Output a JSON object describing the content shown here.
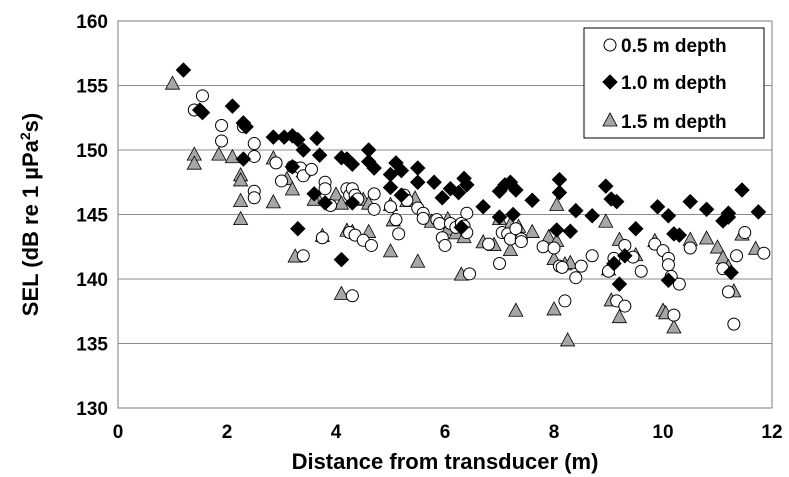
{
  "chart_data": {
    "type": "scatter",
    "title": "",
    "xlabel": "Distance from transducer (m)",
    "ylabel": "SEL (dB re 1 µPa²s)",
    "ylabel_parts": [
      "SEL (dB re 1 µPa",
      "2",
      "s)"
    ],
    "xlim": [
      0,
      12
    ],
    "ylim": [
      130,
      160
    ],
    "xticks": [
      0,
      2,
      4,
      6,
      8,
      10,
      12
    ],
    "yticks": [
      130,
      135,
      140,
      145,
      150,
      155,
      160
    ],
    "grid": "horizontal",
    "legend_position": "top-right",
    "series": [
      {
        "name": "0.5 m depth",
        "marker": "circle",
        "fill": "#ffffff",
        "stroke": "#000000",
        "points": [
          [
            1.55,
            154.2
          ],
          [
            1.4,
            153.1
          ],
          [
            1.9,
            151.9
          ],
          [
            1.9,
            150.7
          ],
          [
            2.3,
            151.8
          ],
          [
            2.5,
            150.5
          ],
          [
            2.5,
            149.5
          ],
          [
            2.5,
            146.8
          ],
          [
            2.5,
            146.3
          ],
          [
            2.9,
            149.0
          ],
          [
            3.0,
            147.6
          ],
          [
            3.2,
            148.7
          ],
          [
            3.35,
            148.6
          ],
          [
            3.4,
            148.0
          ],
          [
            3.55,
            148.5
          ],
          [
            3.8,
            147.5
          ],
          [
            3.8,
            147.0
          ],
          [
            3.4,
            141.8
          ],
          [
            3.75,
            143.2
          ],
          [
            3.9,
            145.7
          ],
          [
            4.2,
            147.0
          ],
          [
            4.25,
            146.5
          ],
          [
            4.3,
            147.0
          ],
          [
            4.35,
            146.5
          ],
          [
            4.4,
            146.2
          ],
          [
            4.25,
            143.6
          ],
          [
            4.35,
            143.4
          ],
          [
            4.5,
            143.0
          ],
          [
            4.3,
            138.7
          ],
          [
            4.7,
            146.6
          ],
          [
            4.7,
            145.4
          ],
          [
            4.65,
            142.6
          ],
          [
            5.0,
            145.6
          ],
          [
            5.1,
            144.6
          ],
          [
            5.15,
            143.5
          ],
          [
            5.25,
            146.5
          ],
          [
            5.3,
            146.1
          ],
          [
            5.5,
            145.5
          ],
          [
            5.6,
            145.1
          ],
          [
            5.6,
            144.7
          ],
          [
            5.85,
            144.6
          ],
          [
            5.9,
            144.3
          ],
          [
            5.95,
            143.2
          ],
          [
            6.0,
            142.6
          ],
          [
            6.1,
            144.3
          ],
          [
            6.2,
            144.0
          ],
          [
            6.3,
            144.3
          ],
          [
            6.35,
            144.1
          ],
          [
            6.4,
            145.1
          ],
          [
            6.4,
            143.6
          ],
          [
            6.45,
            140.4
          ],
          [
            6.8,
            142.7
          ],
          [
            7.0,
            141.2
          ],
          [
            7.05,
            143.6
          ],
          [
            7.15,
            143.5
          ],
          [
            7.2,
            143.1
          ],
          [
            7.3,
            143.9
          ],
          [
            7.4,
            143.1
          ],
          [
            7.4,
            142.9
          ],
          [
            7.8,
            142.5
          ],
          [
            8.0,
            142.4
          ],
          [
            8.1,
            141.0
          ],
          [
            8.15,
            140.9
          ],
          [
            8.2,
            138.3
          ],
          [
            8.4,
            140.1
          ],
          [
            8.5,
            141.0
          ],
          [
            8.7,
            141.8
          ],
          [
            9.0,
            140.6
          ],
          [
            9.1,
            141.6
          ],
          [
            9.15,
            138.3
          ],
          [
            9.3,
            137.9
          ],
          [
            9.3,
            142.6
          ],
          [
            9.45,
            141.7
          ],
          [
            9.6,
            140.6
          ],
          [
            9.85,
            142.7
          ],
          [
            10.0,
            142.2
          ],
          [
            10.1,
            141.6
          ],
          [
            10.1,
            141.1
          ],
          [
            10.15,
            140.2
          ],
          [
            10.2,
            137.2
          ],
          [
            10.3,
            139.6
          ],
          [
            10.5,
            142.4
          ],
          [
            11.1,
            140.8
          ],
          [
            11.2,
            139.0
          ],
          [
            11.3,
            136.5
          ],
          [
            11.35,
            141.8
          ],
          [
            11.5,
            143.6
          ],
          [
            11.85,
            142.0
          ]
        ]
      },
      {
        "name": "1.0 m depth",
        "marker": "diamond",
        "fill": "#000000",
        "stroke": "#000000",
        "points": [
          [
            1.2,
            156.2
          ],
          [
            1.5,
            153.1
          ],
          [
            1.55,
            152.9
          ],
          [
            2.1,
            153.4
          ],
          [
            2.3,
            152.1
          ],
          [
            2.35,
            151.8
          ],
          [
            2.3,
            149.3
          ],
          [
            2.85,
            151.0
          ],
          [
            3.05,
            151.0
          ],
          [
            3.2,
            151.1
          ],
          [
            3.3,
            150.8
          ],
          [
            3.4,
            150.0
          ],
          [
            3.2,
            148.7
          ],
          [
            3.3,
            143.9
          ],
          [
            3.65,
            150.9
          ],
          [
            3.7,
            149.6
          ],
          [
            3.6,
            146.6
          ],
          [
            3.8,
            145.9
          ],
          [
            4.1,
            149.4
          ],
          [
            4.2,
            149.3
          ],
          [
            4.3,
            148.9
          ],
          [
            4.3,
            145.9
          ],
          [
            4.1,
            141.5
          ],
          [
            4.6,
            150.0
          ],
          [
            4.6,
            149.1
          ],
          [
            4.7,
            148.6
          ],
          [
            5.0,
            148.1
          ],
          [
            5.0,
            147.1
          ],
          [
            5.1,
            149.0
          ],
          [
            5.2,
            148.4
          ],
          [
            5.5,
            148.6
          ],
          [
            5.5,
            147.5
          ],
          [
            5.2,
            146.5
          ],
          [
            5.8,
            147.5
          ],
          [
            5.95,
            146.3
          ],
          [
            6.1,
            147.0
          ],
          [
            6.25,
            146.7
          ],
          [
            6.35,
            147.8
          ],
          [
            6.4,
            147.3
          ],
          [
            6.3,
            144.0
          ],
          [
            6.7,
            145.6
          ],
          [
            7.0,
            146.8
          ],
          [
            7.1,
            147.3
          ],
          [
            7.2,
            147.5
          ],
          [
            7.3,
            146.9
          ],
          [
            7.0,
            144.8
          ],
          [
            7.25,
            145.0
          ],
          [
            7.6,
            146.1
          ],
          [
            8.1,
            147.7
          ],
          [
            8.1,
            146.7
          ],
          [
            8.05,
            143.8
          ],
          [
            8.4,
            145.3
          ],
          [
            8.7,
            144.9
          ],
          [
            8.3,
            143.7
          ],
          [
            8.95,
            147.2
          ],
          [
            9.05,
            146.2
          ],
          [
            9.15,
            146.0
          ],
          [
            9.1,
            141.2
          ],
          [
            9.2,
            139.6
          ],
          [
            9.3,
            141.8
          ],
          [
            9.5,
            143.9
          ],
          [
            9.9,
            145.6
          ],
          [
            10.1,
            144.9
          ],
          [
            10.2,
            143.5
          ],
          [
            10.1,
            139.9
          ],
          [
            10.3,
            143.4
          ],
          [
            10.5,
            146.0
          ],
          [
            10.8,
            145.4
          ],
          [
            11.1,
            144.5
          ],
          [
            11.2,
            145.1
          ],
          [
            11.2,
            144.8
          ],
          [
            11.25,
            140.5
          ],
          [
            11.45,
            146.9
          ],
          [
            11.75,
            145.2
          ]
        ]
      },
      {
        "name": "1.5 m depth",
        "marker": "triangle",
        "fill": "#a6a6a6",
        "stroke": "#000000",
        "points": [
          [
            1.0,
            155.1
          ],
          [
            1.4,
            149.6
          ],
          [
            1.4,
            148.9
          ],
          [
            1.85,
            149.6
          ],
          [
            2.1,
            149.4
          ],
          [
            2.25,
            148.0
          ],
          [
            2.25,
            147.6
          ],
          [
            2.25,
            146.0
          ],
          [
            2.25,
            144.6
          ],
          [
            2.85,
            149.3
          ],
          [
            2.85,
            145.9
          ],
          [
            3.1,
            147.7
          ],
          [
            3.2,
            146.9
          ],
          [
            3.25,
            141.7
          ],
          [
            3.4,
            148.3
          ],
          [
            3.65,
            146.3
          ],
          [
            3.75,
            143.3
          ],
          [
            3.6,
            146.1
          ],
          [
            4.0,
            146.5
          ],
          [
            4.1,
            145.8
          ],
          [
            4.2,
            143.7
          ],
          [
            4.3,
            143.6
          ],
          [
            4.5,
            146.1
          ],
          [
            4.6,
            145.8
          ],
          [
            4.6,
            143.6
          ],
          [
            4.1,
            138.8
          ],
          [
            5.0,
            145.7
          ],
          [
            5.05,
            144.5
          ],
          [
            5.0,
            142.1
          ],
          [
            5.3,
            146.0
          ],
          [
            5.45,
            146.2
          ],
          [
            5.5,
            141.3
          ],
          [
            5.75,
            144.4
          ],
          [
            6.05,
            144.6
          ],
          [
            6.05,
            143.8
          ],
          [
            6.2,
            143.5
          ],
          [
            6.35,
            143.2
          ],
          [
            6.3,
            140.3
          ],
          [
            6.7,
            142.8
          ],
          [
            6.9,
            142.6
          ],
          [
            7.0,
            144.6
          ],
          [
            7.2,
            144.2
          ],
          [
            7.35,
            144.0
          ],
          [
            7.2,
            142.2
          ],
          [
            7.3,
            137.5
          ],
          [
            7.6,
            143.6
          ],
          [
            7.9,
            143.2
          ],
          [
            8.05,
            142.9
          ],
          [
            8.0,
            141.5
          ],
          [
            8.05,
            145.7
          ],
          [
            8.0,
            137.6
          ],
          [
            8.2,
            141.1
          ],
          [
            8.3,
            141.2
          ],
          [
            8.25,
            135.2
          ],
          [
            8.95,
            144.4
          ],
          [
            9.0,
            140.7
          ],
          [
            9.05,
            138.3
          ],
          [
            9.2,
            137.0
          ],
          [
            9.2,
            143.0
          ],
          [
            9.5,
            141.8
          ],
          [
            9.85,
            142.9
          ],
          [
            10.0,
            137.5
          ],
          [
            10.05,
            137.3
          ],
          [
            10.2,
            136.2
          ],
          [
            10.5,
            143.0
          ],
          [
            10.8,
            143.1
          ],
          [
            11.0,
            142.4
          ],
          [
            11.1,
            141.6
          ],
          [
            11.2,
            140.9
          ],
          [
            11.3,
            139.0
          ],
          [
            11.45,
            143.4
          ],
          [
            11.7,
            142.3
          ]
        ]
      }
    ]
  }
}
